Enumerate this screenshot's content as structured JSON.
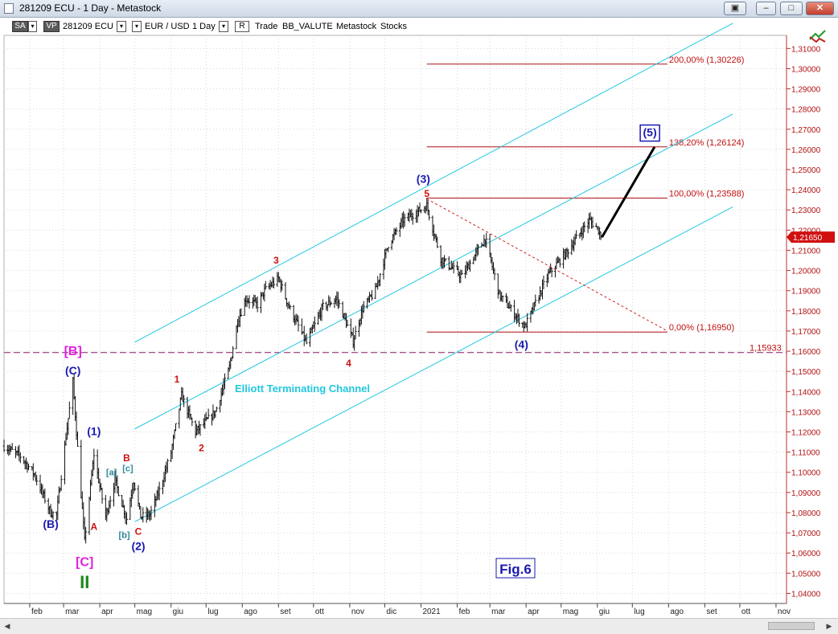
{
  "window": {
    "title": "281209 ECU - 1 Day - Metastock",
    "buttons": [
      "▣",
      "–",
      "□",
      "✕"
    ]
  },
  "toolbar": {
    "sa": "SA",
    "vp": "VP",
    "symbol": "281209 ECU",
    "pair": "EUR / USD",
    "period": "1 Day",
    "r": "R",
    "items": [
      "Trade",
      "BB_VALUTE",
      "Metastock",
      "Stocks"
    ],
    "drop_glyph": "▾"
  },
  "chart_data": {
    "type": "candlestick",
    "instrument": "EUR / USD",
    "period": "1 Day",
    "ylim": [
      1.035,
      1.3165
    ],
    "yticks": [
      1.04,
      1.05,
      1.06,
      1.07,
      1.08,
      1.09,
      1.1,
      1.11,
      1.12,
      1.13,
      1.14,
      1.15,
      1.16,
      1.17,
      1.18,
      1.19,
      1.2,
      1.21,
      1.22,
      1.23,
      1.24,
      1.25,
      1.26,
      1.27,
      1.28,
      1.29,
      1.3,
      1.31
    ],
    "ytick_labels": [
      "1,04000",
      "1,05000",
      "1,06000",
      "1,07000",
      "1,08000",
      "1,09000",
      "1,10000",
      "1,11000",
      "1,12000",
      "1,13000",
      "1,14000",
      "1,15000",
      "1,16000",
      "1,17000",
      "1,18000",
      "1,19000",
      "1,20000",
      "1,21000",
      "1,22000",
      "1,23000",
      "1,24000",
      "1,25000",
      "1,26000",
      "1,27000",
      "1,28000",
      "1,29000",
      "1,30000",
      "1,31000"
    ],
    "x_start": "2020-01-10",
    "x_end": "2021-11-10",
    "months": [
      {
        "label": "feb",
        "date": "2020-02-01"
      },
      {
        "label": "mar",
        "date": "2020-03-01"
      },
      {
        "label": "apr",
        "date": "2020-04-01"
      },
      {
        "label": "mag",
        "date": "2020-05-01"
      },
      {
        "label": "giu",
        "date": "2020-06-01"
      },
      {
        "label": "lug",
        "date": "2020-07-01"
      },
      {
        "label": "ago",
        "date": "2020-08-01"
      },
      {
        "label": "set",
        "date": "2020-09-01"
      },
      {
        "label": "ott",
        "date": "2020-10-01"
      },
      {
        "label": "nov",
        "date": "2020-11-01"
      },
      {
        "label": "dic",
        "date": "2020-12-01"
      },
      {
        "label": "2021",
        "date": "2021-01-01"
      },
      {
        "label": "feb",
        "date": "2021-02-01"
      },
      {
        "label": "mar",
        "date": "2021-03-01"
      },
      {
        "label": "apr",
        "date": "2021-04-01"
      },
      {
        "label": "mag",
        "date": "2021-05-01"
      },
      {
        "label": "giu",
        "date": "2021-06-01"
      },
      {
        "label": "lug",
        "date": "2021-07-01"
      },
      {
        "label": "ago",
        "date": "2021-08-01"
      },
      {
        "label": "set",
        "date": "2021-09-01"
      },
      {
        "label": "ott",
        "date": "2021-10-01"
      },
      {
        "label": "nov",
        "date": "2021-11-01"
      }
    ],
    "price_path": [
      [
        "2020-01-10",
        1.113
      ],
      [
        "2020-01-24",
        1.108
      ],
      [
        "2020-02-05",
        1.099
      ],
      [
        "2020-02-19",
        1.08
      ],
      [
        "2020-02-24",
        1.079
      ],
      [
        "2020-03-02",
        1.113
      ],
      [
        "2020-03-09",
        1.145
      ],
      [
        "2020-03-13",
        1.112
      ],
      [
        "2020-03-19",
        1.066
      ],
      [
        "2020-03-27",
        1.109
      ],
      [
        "2020-04-01",
        1.093
      ],
      [
        "2020-04-06",
        1.078
      ],
      [
        "2020-04-14",
        1.096
      ],
      [
        "2020-04-24",
        1.077
      ],
      [
        "2020-04-30",
        1.096
      ],
      [
        "2020-05-06",
        1.078
      ],
      [
        "2020-05-14",
        1.079
      ],
      [
        "2020-05-22",
        1.091
      ],
      [
        "2020-06-01",
        1.11
      ],
      [
        "2020-06-10",
        1.138
      ],
      [
        "2020-06-22",
        1.12
      ],
      [
        "2020-06-29",
        1.124
      ],
      [
        "2020-07-09",
        1.13
      ],
      [
        "2020-07-21",
        1.152
      ],
      [
        "2020-07-28",
        1.175
      ],
      [
        "2020-08-04",
        1.186
      ],
      [
        "2020-08-14",
        1.183
      ],
      [
        "2020-08-20",
        1.19
      ],
      [
        "2020-09-01",
        1.196
      ],
      [
        "2020-09-10",
        1.182
      ],
      [
        "2020-09-25",
        1.164
      ],
      [
        "2020-10-09",
        1.182
      ],
      [
        "2020-10-21",
        1.186
      ],
      [
        "2020-11-04",
        1.165
      ],
      [
        "2020-11-12",
        1.181
      ],
      [
        "2020-11-23",
        1.19
      ],
      [
        "2020-12-04",
        1.213
      ],
      [
        "2020-12-17",
        1.225
      ],
      [
        "2021-01-06",
        1.232
      ],
      [
        "2021-01-18",
        1.206
      ],
      [
        "2021-02-05",
        1.197
      ],
      [
        "2021-02-25",
        1.216
      ],
      [
        "2021-03-09",
        1.188
      ],
      [
        "2021-03-31",
        1.172
      ],
      [
        "2021-04-20",
        1.198
      ],
      [
        "2021-05-07",
        1.21
      ],
      [
        "2021-05-25",
        1.225
      ],
      [
        "2021-06-01",
        1.221
      ],
      [
        "2021-06-05",
        1.2165
      ]
    ],
    "projection": {
      "from": [
        "2021-06-05",
        1.2165
      ],
      "to": [
        "2021-07-20",
        1.2612
      ]
    },
    "last_price": 1.2165,
    "last_price_label": "1,21650",
    "fib_levels": [
      {
        "value": 1.30226,
        "label": "200,00% (1,30226)"
      },
      {
        "value": 1.26124,
        "label": "138,20% (1,26124)"
      },
      {
        "value": 1.23588,
        "label": "100,00% (1,23588)"
      },
      {
        "value": 1.1695,
        "label": "0,00% (1,16950)"
      }
    ],
    "fib_start": "2021-01-06",
    "fib_end": "2021-07-31",
    "horizontal_level": {
      "value": 1.15933,
      "label": "1,15933"
    },
    "channel": {
      "label": "Elliott Terminating Channel",
      "lines": [
        {
          "from": [
            "2020-05-01",
            1.1645
          ],
          "to": [
            "2021-09-25",
            1.3225
          ]
        },
        {
          "from": [
            "2020-05-01",
            1.1215
          ],
          "to": [
            "2021-09-25",
            1.2775
          ]
        },
        {
          "from": [
            "2020-05-01",
            1.0755
          ],
          "to": [
            "2021-09-25",
            1.2315
          ]
        }
      ]
    },
    "trendline": {
      "from": [
        "2021-01-06",
        1.2355
      ],
      "to": [
        "2021-07-31",
        1.17
      ]
    },
    "wave_labels": [
      {
        "text": "[B]",
        "date": "2020-03-09",
        "price": 1.158,
        "color": "#e020e0",
        "size": 16
      },
      {
        "text": "(C)",
        "date": "2020-03-09",
        "price": 1.1485,
        "color": "#1a1ab0",
        "size": 14
      },
      {
        "text": "(B)",
        "date": "2020-02-19",
        "price": 1.0725,
        "color": "#1a1ab0",
        "size": 14
      },
      {
        "text": "[C]",
        "date": "2020-03-19",
        "price": 1.0535,
        "color": "#e020e0",
        "size": 16
      },
      {
        "text": "II",
        "date": "2020-03-19",
        "price": 1.0425,
        "color": "#1a8a1a",
        "size": 22
      },
      {
        "text": "(1)",
        "date": "2020-03-27",
        "price": 1.1185,
        "color": "#1a1ab0",
        "size": 14
      },
      {
        "text": "A",
        "date": "2020-03-27",
        "price": 1.0715,
        "color": "#d01010",
        "size": 12
      },
      {
        "text": "[a]",
        "date": "2020-04-11",
        "price": 1.0985,
        "color": "#2a8a9a",
        "size": 11
      },
      {
        "text": "B",
        "date": "2020-04-24",
        "price": 1.1055,
        "color": "#d01010",
        "size": 12
      },
      {
        "text": "[c]",
        "date": "2020-04-25",
        "price": 1.1005,
        "color": "#2a8a9a",
        "size": 11
      },
      {
        "text": "[b]",
        "date": "2020-04-22",
        "price": 1.0675,
        "color": "#2a8a9a",
        "size": 11
      },
      {
        "text": "C",
        "date": "2020-05-04",
        "price": 1.069,
        "color": "#d01010",
        "size": 12
      },
      {
        "text": "(2)",
        "date": "2020-05-04",
        "price": 1.0615,
        "color": "#1a1ab0",
        "size": 14
      },
      {
        "text": "1",
        "date": "2020-06-06",
        "price": 1.1445,
        "color": "#d01010",
        "size": 12
      },
      {
        "text": "2",
        "date": "2020-06-27",
        "price": 1.1105,
        "color": "#d01010",
        "size": 12
      },
      {
        "text": "3",
        "date": "2020-08-30",
        "price": 1.2035,
        "color": "#d01010",
        "size": 12
      },
      {
        "text": "4",
        "date": "2020-10-31",
        "price": 1.1525,
        "color": "#d01010",
        "size": 12
      },
      {
        "text": "(3)",
        "date": "2021-01-03",
        "price": 1.2435,
        "color": "#1a1ab0",
        "size": 14
      },
      {
        "text": "5",
        "date": "2021-01-06",
        "price": 1.2365,
        "color": "#d01010",
        "size": 12
      },
      {
        "text": "(4)",
        "date": "2021-03-28",
        "price": 1.1615,
        "color": "#1a1ab0",
        "size": 14
      },
      {
        "text": "(5)",
        "date": "2021-07-16",
        "price": 1.2665,
        "color": "#1a1ab0",
        "size": 14,
        "boxed": true
      }
    ],
    "figure_label": "Fig.6"
  }
}
